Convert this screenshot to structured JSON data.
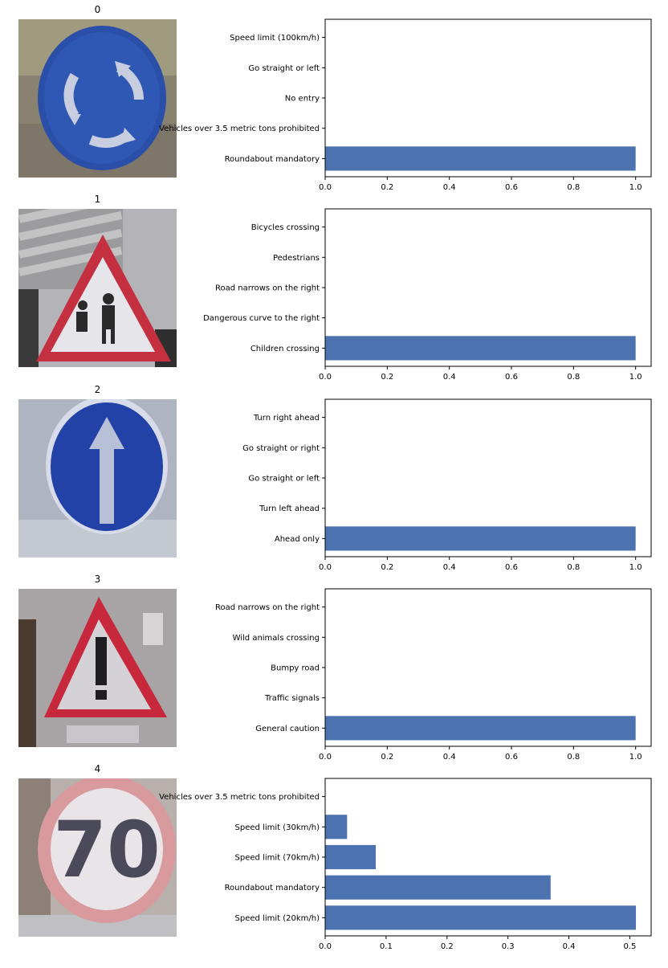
{
  "figure": {
    "colors": {
      "bar": "#4c72b0",
      "axis": "#000000"
    },
    "panels": [
      {
        "title": "0",
        "sign": "roundabout-sign-icon"
      },
      {
        "title": "1",
        "sign": "children-crossing-sign-icon"
      },
      {
        "title": "2",
        "sign": "ahead-only-sign-icon"
      },
      {
        "title": "3",
        "sign": "general-caution-sign-icon"
      },
      {
        "title": "4",
        "sign": "speed-limit-70-sign-icon",
        "sign_text": "70"
      }
    ]
  },
  "chart_data": [
    {
      "type": "bar",
      "orientation": "horizontal",
      "categories": [
        "Roundabout mandatory",
        "Vehicles over 3.5 metric tons prohibited",
        "No entry",
        "Go straight or left",
        "Speed limit (100km/h)"
      ],
      "values": [
        1.0,
        0.0,
        0.0,
        0.0,
        0.0
      ],
      "xlim": [
        0,
        1.05
      ],
      "xticks": [
        "0.0",
        "0.2",
        "0.4",
        "0.6",
        "0.8",
        "1.0"
      ],
      "xtick_values": [
        0,
        0.2,
        0.4,
        0.6,
        0.8,
        1.0
      ]
    },
    {
      "type": "bar",
      "orientation": "horizontal",
      "categories": [
        "Children crossing",
        "Dangerous curve to the right",
        "Road narrows on the right",
        "Pedestrians",
        "Bicycles crossing"
      ],
      "values": [
        1.0,
        0.0,
        0.0,
        0.0,
        0.0
      ],
      "xlim": [
        0,
        1.05
      ],
      "xticks": [
        "0.0",
        "0.2",
        "0.4",
        "0.6",
        "0.8",
        "1.0"
      ],
      "xtick_values": [
        0,
        0.2,
        0.4,
        0.6,
        0.8,
        1.0
      ]
    },
    {
      "type": "bar",
      "orientation": "horizontal",
      "categories": [
        "Ahead only",
        "Turn left ahead",
        "Go straight or left",
        "Go straight or right",
        "Turn right ahead"
      ],
      "values": [
        1.0,
        0.0,
        0.0,
        0.0,
        0.0
      ],
      "xlim": [
        0,
        1.05
      ],
      "xticks": [
        "0.0",
        "0.2",
        "0.4",
        "0.6",
        "0.8",
        "1.0"
      ],
      "xtick_values": [
        0,
        0.2,
        0.4,
        0.6,
        0.8,
        1.0
      ]
    },
    {
      "type": "bar",
      "orientation": "horizontal",
      "categories": [
        "General caution",
        "Traffic signals",
        "Bumpy road",
        "Wild animals crossing",
        "Road narrows on the right"
      ],
      "values": [
        1.0,
        0.0,
        0.0,
        0.0,
        0.0
      ],
      "xlim": [
        0,
        1.05
      ],
      "xticks": [
        "0.0",
        "0.2",
        "0.4",
        "0.6",
        "0.8",
        "1.0"
      ],
      "xtick_values": [
        0,
        0.2,
        0.4,
        0.6,
        0.8,
        1.0
      ]
    },
    {
      "type": "bar",
      "orientation": "horizontal",
      "categories": [
        "Speed limit (20km/h)",
        "Roundabout mandatory",
        "Speed limit (70km/h)",
        "Speed limit (30km/h)",
        "Vehicles over 3.5 metric tons prohibited"
      ],
      "values": [
        0.51,
        0.37,
        0.083,
        0.036,
        0.0
      ],
      "xlim": [
        0,
        0.535
      ],
      "xticks": [
        "0.0",
        "0.1",
        "0.2",
        "0.3",
        "0.4",
        "0.5"
      ],
      "xtick_values": [
        0,
        0.1,
        0.2,
        0.3,
        0.4,
        0.5
      ]
    }
  ]
}
